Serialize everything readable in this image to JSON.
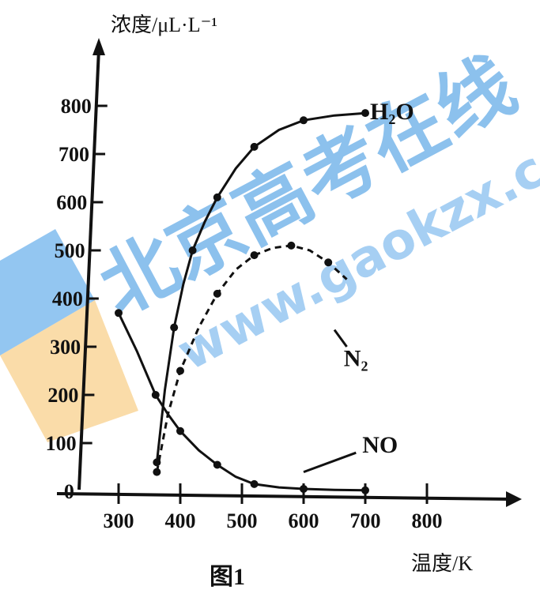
{
  "chart_data": {
    "type": "line",
    "ylabel": "浓度/μL·L⁻¹",
    "xlabel": "温度/K",
    "caption": "图1",
    "xlim": [
      200,
      880
    ],
    "ylim": [
      0,
      900
    ],
    "x_ticks": [
      300,
      400,
      500,
      600,
      700,
      800
    ],
    "y_ticks": [
      0,
      100,
      200,
      300,
      400,
      500,
      600,
      700,
      800
    ],
    "grid": false,
    "series": [
      {
        "name": "H₂O",
        "x": [
          362,
          375,
          390,
          405,
          420,
          440,
          460,
          490,
          520,
          560,
          600,
          650,
          700
        ],
        "y": [
          60,
          210,
          340,
          430,
          500,
          560,
          610,
          670,
          715,
          750,
          770,
          780,
          785
        ]
      },
      {
        "name": "N₂",
        "x": [
          362,
          380,
          400,
          430,
          460,
          490,
          520,
          550,
          580,
          610,
          640,
          670
        ],
        "y": [
          40,
          160,
          250,
          340,
          410,
          460,
          490,
          505,
          510,
          500,
          475,
          440
        ]
      },
      {
        "name": "NO",
        "x": [
          300,
          330,
          360,
          380,
          400,
          430,
          460,
          490,
          520,
          560,
          600,
          650,
          700
        ],
        "y": [
          370,
          290,
          200,
          160,
          125,
          85,
          55,
          30,
          15,
          8,
          5,
          3,
          2
        ]
      }
    ]
  },
  "watermark": {
    "text": "北京高考在线",
    "url": "www.gaokzx.com"
  }
}
